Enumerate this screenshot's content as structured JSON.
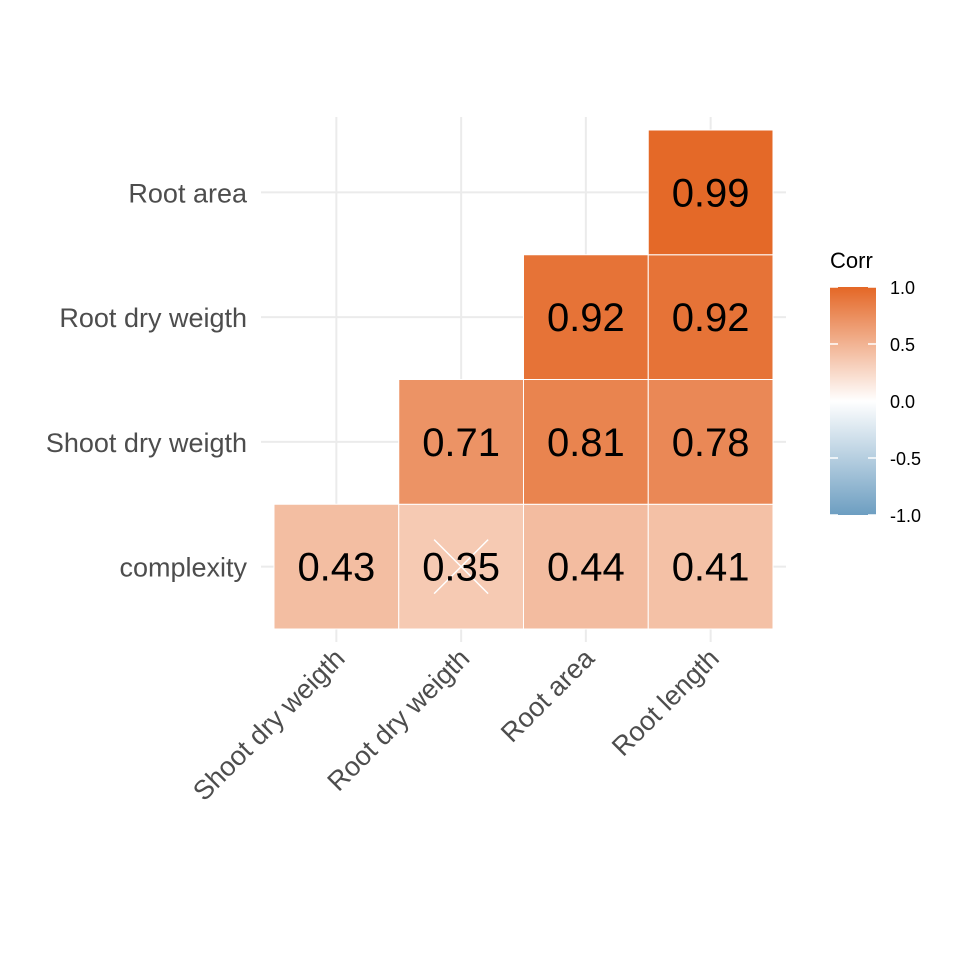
{
  "chart_data": {
    "type": "heatmap",
    "x_categories": [
      "Shoot dry weigth",
      "Root dry weigth",
      "Root area",
      "Root length"
    ],
    "y_categories": [
      "complexity",
      "Shoot dry weigth",
      "Root dry weigth",
      "Root area"
    ],
    "cells": [
      {
        "x": "Shoot dry weigth",
        "y": "complexity",
        "value": 0.43,
        "label": "0.43"
      },
      {
        "x": "Root dry weigth",
        "y": "complexity",
        "value": 0.35,
        "label": "0.35",
        "crossed": true
      },
      {
        "x": "Root area",
        "y": "complexity",
        "value": 0.44,
        "label": "0.44"
      },
      {
        "x": "Root length",
        "y": "complexity",
        "value": 0.41,
        "label": "0.41"
      },
      {
        "x": "Root dry weigth",
        "y": "Shoot dry weigth",
        "value": 0.71,
        "label": "0.71"
      },
      {
        "x": "Root area",
        "y": "Shoot dry weigth",
        "value": 0.81,
        "label": "0.81"
      },
      {
        "x": "Root length",
        "y": "Shoot dry weigth",
        "value": 0.78,
        "label": "0.78"
      },
      {
        "x": "Root area",
        "y": "Root dry weigth",
        "value": 0.92,
        "label": "0.92"
      },
      {
        "x": "Root length",
        "y": "Root dry weigth",
        "value": 0.92,
        "label": "0.92"
      },
      {
        "x": "Root length",
        "y": "Root area",
        "value": 0.99,
        "label": "0.99"
      }
    ],
    "legend": {
      "title": "Corr",
      "ticks": [
        "1.0",
        "0.5",
        "0.0",
        "-0.5",
        "-1.0"
      ],
      "tick_values": [
        1.0,
        0.5,
        0.0,
        -0.5,
        -1.0
      ],
      "range": [
        -1.0,
        1.0
      ],
      "placement": "right"
    },
    "colors": {
      "low": "#6D9EC1",
      "mid": "#FFFFFF",
      "high": "#E46726"
    },
    "grid": true
  }
}
